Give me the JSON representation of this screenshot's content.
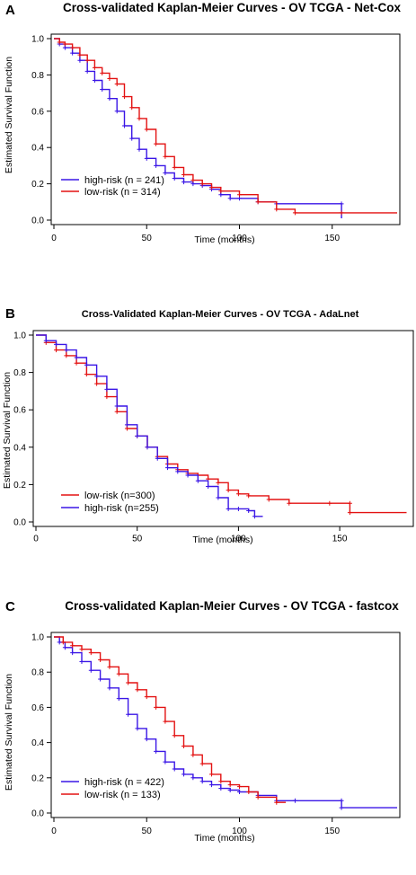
{
  "panels": [
    {
      "letter": "A"
    },
    {
      "letter": "B"
    },
    {
      "letter": "C"
    }
  ],
  "colors": {
    "high_risk": "#3a16e6",
    "low_risk": "#e31212"
  },
  "chart_data": [
    {
      "type": "line",
      "title": "Cross-validated Kaplan-Meier Curves - OV TCGA - Net-Cox",
      "xlabel": "Time (months)",
      "ylabel": "Estimated Survival Function",
      "xlim": [
        0,
        185
      ],
      "ylim": [
        0,
        1
      ],
      "x_ticks": [
        0,
        50,
        100,
        150
      ],
      "y_ticks": [
        "0.0",
        "0.2",
        "0.4",
        "0.6",
        "0.8",
        "1.0"
      ],
      "legend_position": "bottom-left",
      "series": [
        {
          "name": "high-risk (n = 241)",
          "color": "#3a16e6",
          "points": [
            [
              0,
              1.0
            ],
            [
              3,
              0.97
            ],
            [
              6,
              0.95
            ],
            [
              10,
              0.92
            ],
            [
              14,
              0.88
            ],
            [
              18,
              0.82
            ],
            [
              22,
              0.77
            ],
            [
              26,
              0.72
            ],
            [
              30,
              0.67
            ],
            [
              34,
              0.6
            ],
            [
              38,
              0.52
            ],
            [
              42,
              0.45
            ],
            [
              46,
              0.39
            ],
            [
              50,
              0.34
            ],
            [
              55,
              0.3
            ],
            [
              60,
              0.26
            ],
            [
              65,
              0.23
            ],
            [
              70,
              0.21
            ],
            [
              75,
              0.2
            ],
            [
              80,
              0.19
            ],
            [
              85,
              0.17
            ],
            [
              90,
              0.14
            ],
            [
              95,
              0.12
            ],
            [
              100,
              0.12
            ],
            [
              110,
              0.1
            ],
            [
              120,
              0.09
            ],
            [
              155,
              0.09
            ],
            [
              155,
              0.01
            ]
          ]
        },
        {
          "name": "low-risk (n = 314)",
          "color": "#e31212",
          "points": [
            [
              0,
              1.0
            ],
            [
              3,
              0.98
            ],
            [
              6,
              0.97
            ],
            [
              10,
              0.95
            ],
            [
              14,
              0.91
            ],
            [
              18,
              0.88
            ],
            [
              22,
              0.84
            ],
            [
              26,
              0.81
            ],
            [
              30,
              0.78
            ],
            [
              34,
              0.75
            ],
            [
              38,
              0.68
            ],
            [
              42,
              0.62
            ],
            [
              46,
              0.56
            ],
            [
              50,
              0.5
            ],
            [
              55,
              0.42
            ],
            [
              60,
              0.35
            ],
            [
              65,
              0.29
            ],
            [
              70,
              0.25
            ],
            [
              75,
              0.22
            ],
            [
              80,
              0.2
            ],
            [
              85,
              0.18
            ],
            [
              90,
              0.16
            ],
            [
              100,
              0.14
            ],
            [
              110,
              0.1
            ],
            [
              120,
              0.06
            ],
            [
              130,
              0.04
            ],
            [
              155,
              0.04
            ],
            [
              185,
              0.04
            ]
          ]
        }
      ]
    },
    {
      "type": "line",
      "title": "Cross-Validated Kaplan-Meier Curves - OV TCGA - AdaLnet",
      "xlabel": "Time (months)",
      "ylabel": "Estimated Survival Function",
      "xlim": [
        0,
        185
      ],
      "ylim": [
        0,
        1
      ],
      "x_ticks": [
        0,
        50,
        100,
        150
      ],
      "y_ticks": [
        "0.0",
        "0.2",
        "0.4",
        "0.6",
        "0.8",
        "1.0"
      ],
      "legend_position": "bottom-left",
      "series": [
        {
          "name": "low-risk (n=300)",
          "color": "#e31212",
          "points": [
            [
              0,
              1.0
            ],
            [
              5,
              0.96
            ],
            [
              10,
              0.92
            ],
            [
              15,
              0.89
            ],
            [
              20,
              0.85
            ],
            [
              25,
              0.79
            ],
            [
              30,
              0.74
            ],
            [
              35,
              0.67
            ],
            [
              40,
              0.59
            ],
            [
              45,
              0.5
            ],
            [
              50,
              0.46
            ],
            [
              55,
              0.4
            ],
            [
              60,
              0.35
            ],
            [
              65,
              0.31
            ],
            [
              70,
              0.28
            ],
            [
              75,
              0.26
            ],
            [
              80,
              0.25
            ],
            [
              85,
              0.23
            ],
            [
              90,
              0.21
            ],
            [
              95,
              0.17
            ],
            [
              100,
              0.15
            ],
            [
              105,
              0.14
            ],
            [
              115,
              0.12
            ],
            [
              125,
              0.1
            ],
            [
              145,
              0.1
            ],
            [
              155,
              0.1
            ],
            [
              155,
              0.05
            ],
            [
              183,
              0.05
            ]
          ]
        },
        {
          "name": "high-risk (n=255)",
          "color": "#3a16e6",
          "points": [
            [
              0,
              1.0
            ],
            [
              5,
              0.97
            ],
            [
              10,
              0.95
            ],
            [
              15,
              0.92
            ],
            [
              20,
              0.88
            ],
            [
              25,
              0.84
            ],
            [
              30,
              0.78
            ],
            [
              35,
              0.71
            ],
            [
              40,
              0.62
            ],
            [
              45,
              0.52
            ],
            [
              50,
              0.46
            ],
            [
              55,
              0.4
            ],
            [
              60,
              0.34
            ],
            [
              65,
              0.29
            ],
            [
              70,
              0.27
            ],
            [
              75,
              0.25
            ],
            [
              80,
              0.22
            ],
            [
              85,
              0.19
            ],
            [
              90,
              0.13
            ],
            [
              95,
              0.07
            ],
            [
              100,
              0.07
            ],
            [
              105,
              0.06
            ],
            [
              108,
              0.03
            ],
            [
              112,
              0.03
            ]
          ]
        }
      ]
    },
    {
      "type": "line",
      "title": "Cross-validated Kaplan-Meier Curves - OV TCGA - fastcox",
      "xlabel": "Time (months)",
      "ylabel": "Estimated Survival Function",
      "xlim": [
        0,
        185
      ],
      "ylim": [
        0,
        1
      ],
      "x_ticks": [
        0,
        50,
        100,
        150
      ],
      "y_ticks": [
        "0.0",
        "0.2",
        "0.4",
        "0.6",
        "0.8",
        "1.0"
      ],
      "legend_position": "bottom-left",
      "series": [
        {
          "name": "high-risk (n = 422)",
          "color": "#3a16e6",
          "points": [
            [
              0,
              1.0
            ],
            [
              3,
              0.97
            ],
            [
              6,
              0.94
            ],
            [
              10,
              0.91
            ],
            [
              15,
              0.86
            ],
            [
              20,
              0.81
            ],
            [
              25,
              0.76
            ],
            [
              30,
              0.71
            ],
            [
              35,
              0.65
            ],
            [
              40,
              0.56
            ],
            [
              45,
              0.48
            ],
            [
              50,
              0.42
            ],
            [
              55,
              0.35
            ],
            [
              60,
              0.29
            ],
            [
              65,
              0.25
            ],
            [
              70,
              0.22
            ],
            [
              75,
              0.2
            ],
            [
              80,
              0.18
            ],
            [
              85,
              0.16
            ],
            [
              90,
              0.14
            ],
            [
              95,
              0.13
            ],
            [
              100,
              0.12
            ],
            [
              110,
              0.1
            ],
            [
              120,
              0.07
            ],
            [
              130,
              0.07
            ],
            [
              155,
              0.07
            ],
            [
              155,
              0.03
            ],
            [
              185,
              0.03
            ]
          ]
        },
        {
          "name": "low-risk (n = 133)",
          "color": "#e31212",
          "points": [
            [
              0,
              1.0
            ],
            [
              5,
              0.97
            ],
            [
              10,
              0.95
            ],
            [
              15,
              0.93
            ],
            [
              20,
              0.91
            ],
            [
              25,
              0.87
            ],
            [
              30,
              0.83
            ],
            [
              35,
              0.79
            ],
            [
              40,
              0.74
            ],
            [
              45,
              0.7
            ],
            [
              50,
              0.66
            ],
            [
              55,
              0.6
            ],
            [
              60,
              0.52
            ],
            [
              65,
              0.44
            ],
            [
              70,
              0.38
            ],
            [
              75,
              0.33
            ],
            [
              80,
              0.28
            ],
            [
              85,
              0.22
            ],
            [
              90,
              0.18
            ],
            [
              95,
              0.16
            ],
            [
              100,
              0.15
            ],
            [
              105,
              0.12
            ],
            [
              110,
              0.09
            ],
            [
              120,
              0.06
            ],
            [
              125,
              0.06
            ]
          ]
        }
      ]
    }
  ]
}
